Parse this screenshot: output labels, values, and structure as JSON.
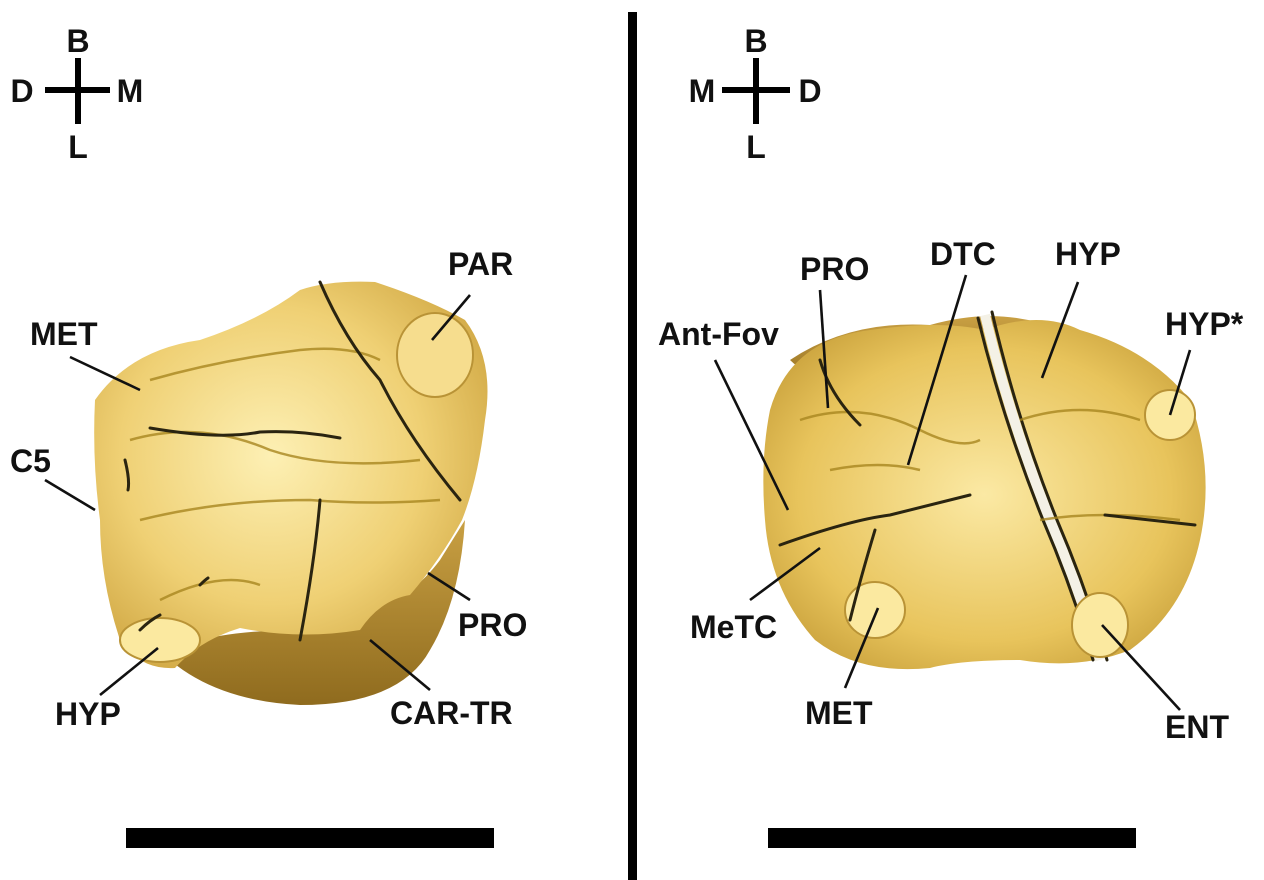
{
  "left_panel": {
    "compass": {
      "top": "B",
      "left": "D",
      "right": "M",
      "bottom": "L"
    },
    "labels": {
      "par": "PAR",
      "met": "MET",
      "c5": "C5",
      "hyp": "HYP",
      "pro": "PRO",
      "car_tr": "CAR-TR"
    }
  },
  "right_panel": {
    "compass": {
      "top": "B",
      "left": "M",
      "right": "D",
      "bottom": "L"
    },
    "labels": {
      "pro": "PRO",
      "dtc": "DTC",
      "hyp": "HYP",
      "hyp_star": "HYP*",
      "ant_fov": "Ant-Fov",
      "metc": "MeTC",
      "met": "MET",
      "ent": "ENT"
    }
  },
  "colors": {
    "tooth_base": "#e8c25a",
    "tooth_light": "#fbe59a",
    "tooth_shadow": "#b8902c",
    "divider": "#000000",
    "scale_bar": "#000000"
  }
}
